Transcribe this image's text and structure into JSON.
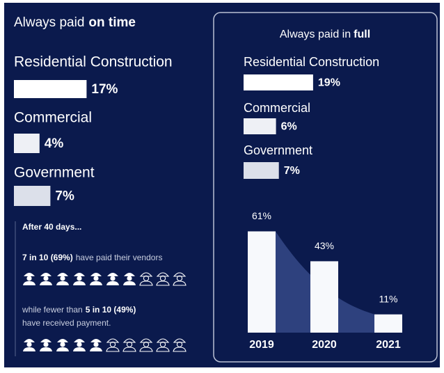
{
  "chart_data": [
    {
      "type": "hbar",
      "title": {
        "text": "Always paid",
        "emphasis": "on time"
      },
      "categories": [
        "Residential Construction",
        "Commercial",
        "Government"
      ],
      "values": [
        17,
        4,
        7
      ],
      "value_labels": [
        "17%",
        "4%",
        "7%"
      ],
      "colors": [
        "#ffffff",
        "#eef0f5",
        "#dce0ea"
      ]
    },
    {
      "type": "hbar",
      "title": {
        "text": "Always paid in",
        "emphasis": "full"
      },
      "categories": [
        "Residential Construction",
        "Commercial",
        "Government"
      ],
      "values": [
        19,
        6,
        7
      ],
      "value_labels": [
        "19%",
        "6%",
        "7%"
      ],
      "colors": [
        "#ffffff",
        "#eef0f5",
        "#dce0ea"
      ]
    },
    {
      "type": "bar",
      "categories": [
        "2019",
        "2020",
        "2021"
      ],
      "values": [
        61,
        43,
        11
      ],
      "value_labels": [
        "61%",
        "43%",
        "11%"
      ],
      "color": "#f7f9fc",
      "ylim": [
        0,
        70
      ]
    }
  ],
  "notes": {
    "heading": "After 40 days...",
    "paid": {
      "emphasis": "7 in 10 (69%)",
      "text": "have paid their vendors",
      "icons_filled": 7,
      "icons_total": 10
    },
    "received": {
      "lead": "while fewer than",
      "emphasis": "5 in 10 (49%)",
      "text": "have received payment.",
      "icons_filled": 5,
      "icons_total": 10
    }
  }
}
